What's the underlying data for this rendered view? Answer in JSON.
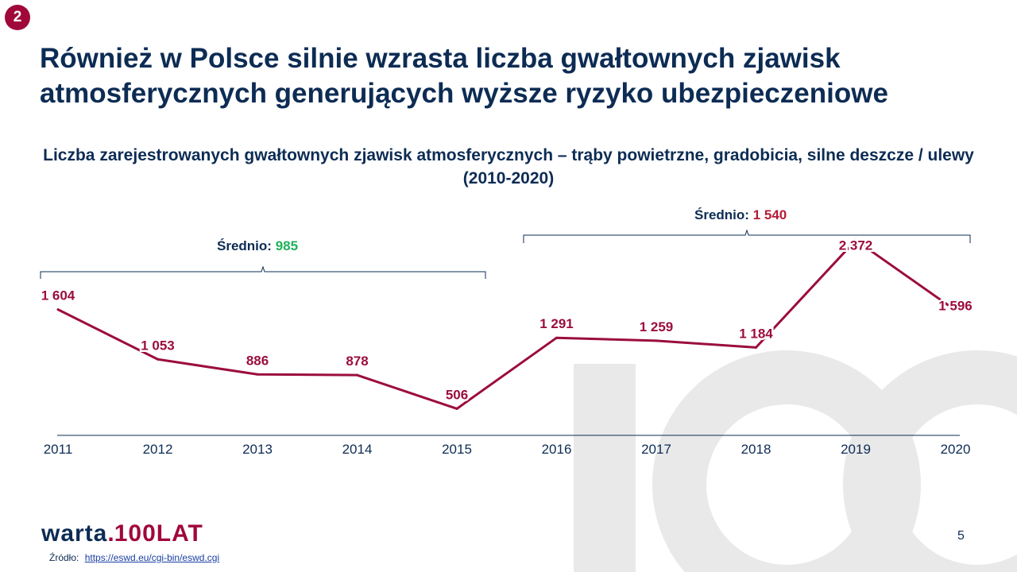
{
  "slide": {
    "badge": "2",
    "title_line1": "Również w Polsce silnie wzrasta liczba gwałtownych zjawisk",
    "title_line2": "atmosferycznych generujących wyższe ryzyko ubezpieczeniowe",
    "page_number": "5",
    "source_label": "Źródło:",
    "source_link": "https://eswd.eu/cgi-bin/eswd.cgi",
    "logo_main": "warta",
    "logo_dot": ".",
    "logo_secondary": "100LAT",
    "colors": {
      "navy": "#0d2c54",
      "brand": "#a0083a",
      "green": "#1fb15b",
      "red": "#b31b34"
    }
  },
  "averages": {
    "first_label": "Średnio:",
    "first_value": "985",
    "second_label": "Średnio:",
    "second_value": "1 540"
  },
  "chart_data": {
    "type": "line",
    "title": "Liczba zarejestrowanych gwałtownych zjawisk atmosferycznych – trąby powietrzne, gradobicia, silne deszcze / ulewy (2010-2020)",
    "categories": [
      "2011",
      "2012",
      "2013",
      "2014",
      "2015",
      "2016",
      "2017",
      "2018",
      "2019",
      "2020"
    ],
    "values": [
      1604,
      1053,
      886,
      878,
      506,
      1291,
      1259,
      1184,
      2372,
      1596
    ],
    "data_labels": [
      "1 604",
      "1 053",
      "886",
      "878",
      "506",
      "1 291",
      "1 259",
      "1 184",
      "2 372",
      "1 596"
    ],
    "line_color": "#9b0d3f",
    "grid": false,
    "legend": "none"
  }
}
